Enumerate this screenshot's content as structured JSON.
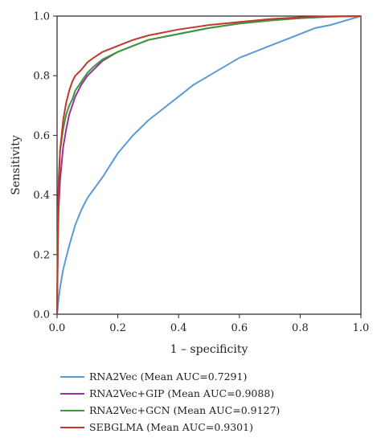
{
  "chart_data": {
    "type": "line",
    "xlabel": "1 – specificity",
    "ylabel": "Sensitivity",
    "xlim": [
      0,
      1
    ],
    "ylim": [
      0,
      1
    ],
    "xticks": [
      "0.0",
      "0.2",
      "0.4",
      "0.6",
      "0.8",
      "1.0"
    ],
    "yticks": [
      "0.0",
      "0.2",
      "0.4",
      "0.6",
      "0.8",
      "1.0"
    ],
    "grid": false,
    "legend_position": "bottom",
    "series": [
      {
        "name": "RNA2Vec (Mean AUC=0.7291)",
        "color": "#5b9bd5",
        "x": [
          0,
          0.005,
          0.01,
          0.02,
          0.04,
          0.06,
          0.08,
          0.1,
          0.15,
          0.2,
          0.25,
          0.3,
          0.35,
          0.4,
          0.45,
          0.5,
          0.55,
          0.6,
          0.65,
          0.7,
          0.75,
          0.8,
          0.85,
          0.9,
          0.95,
          1.0
        ],
        "y": [
          0,
          0.05,
          0.09,
          0.15,
          0.23,
          0.3,
          0.35,
          0.39,
          0.46,
          0.54,
          0.6,
          0.65,
          0.69,
          0.73,
          0.77,
          0.8,
          0.83,
          0.86,
          0.88,
          0.9,
          0.92,
          0.94,
          0.96,
          0.97,
          0.985,
          1.0
        ]
      },
      {
        "name": "RNA2Vec+GIP (Mean AUC=0.9088)",
        "color": "#9b2f9b",
        "x": [
          0,
          0.003,
          0.005,
          0.01,
          0.02,
          0.03,
          0.04,
          0.05,
          0.06,
          0.08,
          0.1,
          0.12,
          0.15,
          0.2,
          0.25,
          0.3,
          0.4,
          0.5,
          0.6,
          0.7,
          0.8,
          0.9,
          1.0
        ],
        "y": [
          0,
          0.25,
          0.35,
          0.45,
          0.56,
          0.62,
          0.67,
          0.7,
          0.73,
          0.77,
          0.8,
          0.82,
          0.85,
          0.88,
          0.9,
          0.92,
          0.94,
          0.96,
          0.975,
          0.985,
          0.993,
          0.998,
          1.0
        ]
      },
      {
        "name": "RNA2Vec+GCN (Mean AUC=0.9127)",
        "color": "#3a9a3a",
        "x": [
          0,
          0.003,
          0.005,
          0.01,
          0.02,
          0.03,
          0.04,
          0.05,
          0.06,
          0.08,
          0.1,
          0.12,
          0.15,
          0.2,
          0.25,
          0.3,
          0.4,
          0.5,
          0.6,
          0.7,
          0.8,
          0.9,
          1.0
        ],
        "y": [
          0,
          0.35,
          0.45,
          0.55,
          0.62,
          0.67,
          0.7,
          0.72,
          0.75,
          0.78,
          0.81,
          0.83,
          0.855,
          0.88,
          0.9,
          0.92,
          0.94,
          0.96,
          0.975,
          0.985,
          0.993,
          0.998,
          1.0
        ]
      },
      {
        "name": "SEBGLMA (Mean AUC=0.9301)",
        "color": "#c0392b",
        "x": [
          0,
          0.003,
          0.005,
          0.01,
          0.02,
          0.03,
          0.04,
          0.05,
          0.06,
          0.07,
          0.08,
          0.1,
          0.12,
          0.15,
          0.2,
          0.25,
          0.3,
          0.4,
          0.5,
          0.6,
          0.7,
          0.8,
          0.9,
          1.0
        ],
        "y": [
          0,
          0.3,
          0.42,
          0.55,
          0.65,
          0.71,
          0.75,
          0.78,
          0.8,
          0.81,
          0.82,
          0.845,
          0.86,
          0.88,
          0.9,
          0.92,
          0.935,
          0.955,
          0.97,
          0.98,
          0.99,
          0.996,
          0.999,
          1.0
        ]
      }
    ]
  }
}
